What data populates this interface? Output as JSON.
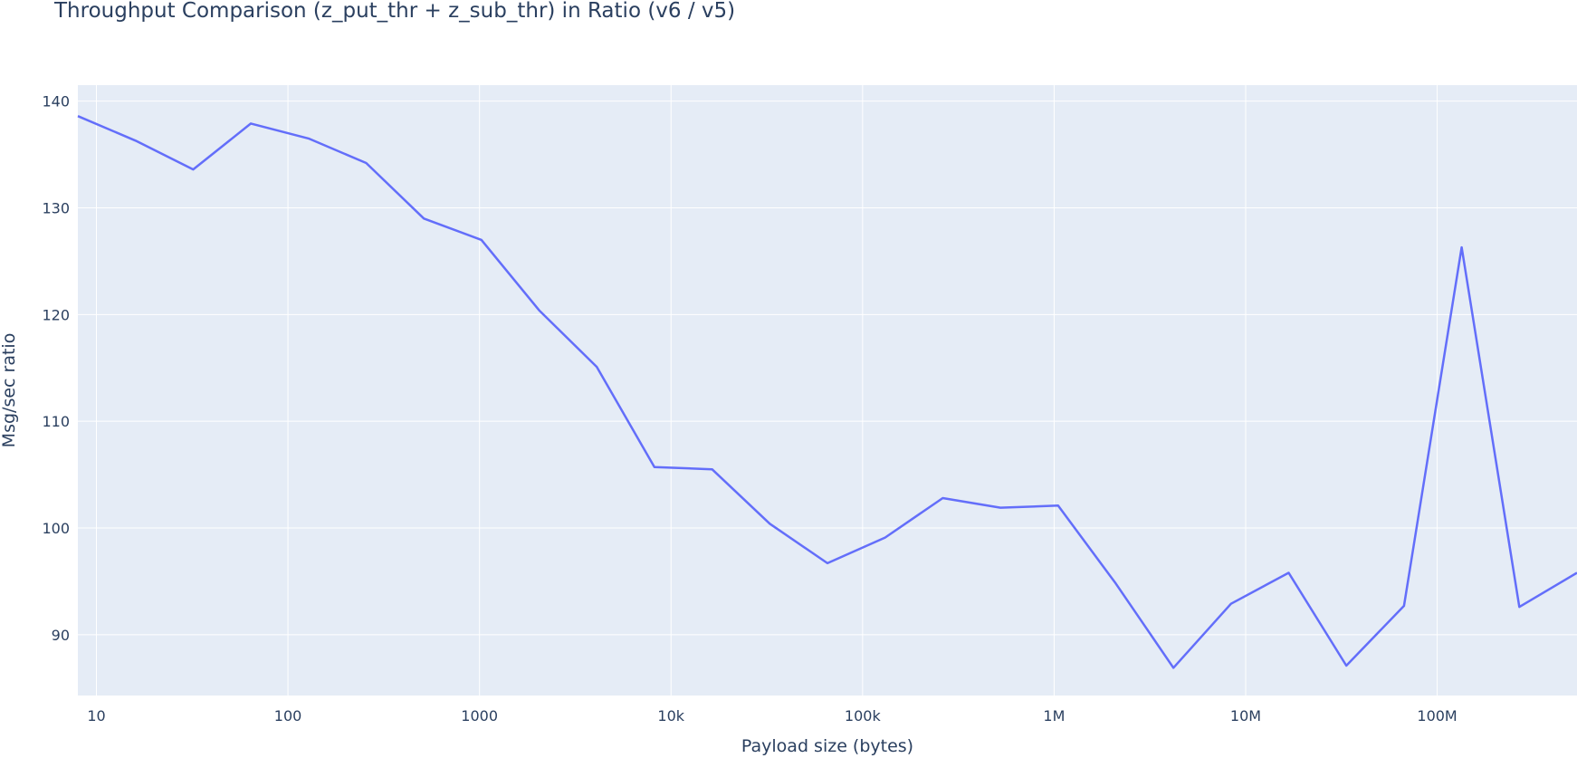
{
  "chart_data": {
    "type": "line",
    "title": "Throughput Comparison (z_put_thr + z_sub_thr) in Ratio (v6 / v5)",
    "xlabel": "Payload size (bytes)",
    "ylabel": "Msg/sec ratio",
    "xscale": "log",
    "xlim": [
      8,
      536870912
    ],
    "ylim": [
      84.3,
      141.5
    ],
    "grid": true,
    "colors": {
      "line": "#636efa",
      "plot_bg": "#e5ecf6",
      "grid": "#ffffff",
      "text": "#2a3f5f"
    },
    "x_ticks": [
      {
        "value": 10,
        "label": "10"
      },
      {
        "value": 100,
        "label": "100"
      },
      {
        "value": 1000,
        "label": "1000"
      },
      {
        "value": 10000,
        "label": "10k"
      },
      {
        "value": 100000,
        "label": "100k"
      },
      {
        "value": 1000000,
        "label": "1M"
      },
      {
        "value": 10000000,
        "label": "10M"
      },
      {
        "value": 100000000,
        "label": "100M"
      }
    ],
    "y_ticks": [
      {
        "value": 90,
        "label": "90"
      },
      {
        "value": 100,
        "label": "100"
      },
      {
        "value": 110,
        "label": "110"
      },
      {
        "value": 120,
        "label": "120"
      },
      {
        "value": 130,
        "label": "130"
      },
      {
        "value": 140,
        "label": "140"
      }
    ],
    "series": [
      {
        "x": [
          8,
          16,
          32,
          64,
          128,
          256,
          512,
          1024,
          2048,
          4096,
          8192,
          16384,
          32768,
          65536,
          131072,
          262144,
          524288,
          1048576,
          2097152,
          4194304,
          8388608,
          16777216,
          33554432,
          67108864,
          134217728,
          268435456,
          536870912
        ],
        "y": [
          138.6,
          136.3,
          133.6,
          137.9,
          136.5,
          134.2,
          129.0,
          127.0,
          120.4,
          115.1,
          105.7,
          105.5,
          100.4,
          96.7,
          99.1,
          102.8,
          101.9,
          102.1,
          94.8,
          86.9,
          92.9,
          95.8,
          87.1,
          92.7,
          126.3,
          92.6,
          95.8
        ]
      }
    ]
  }
}
